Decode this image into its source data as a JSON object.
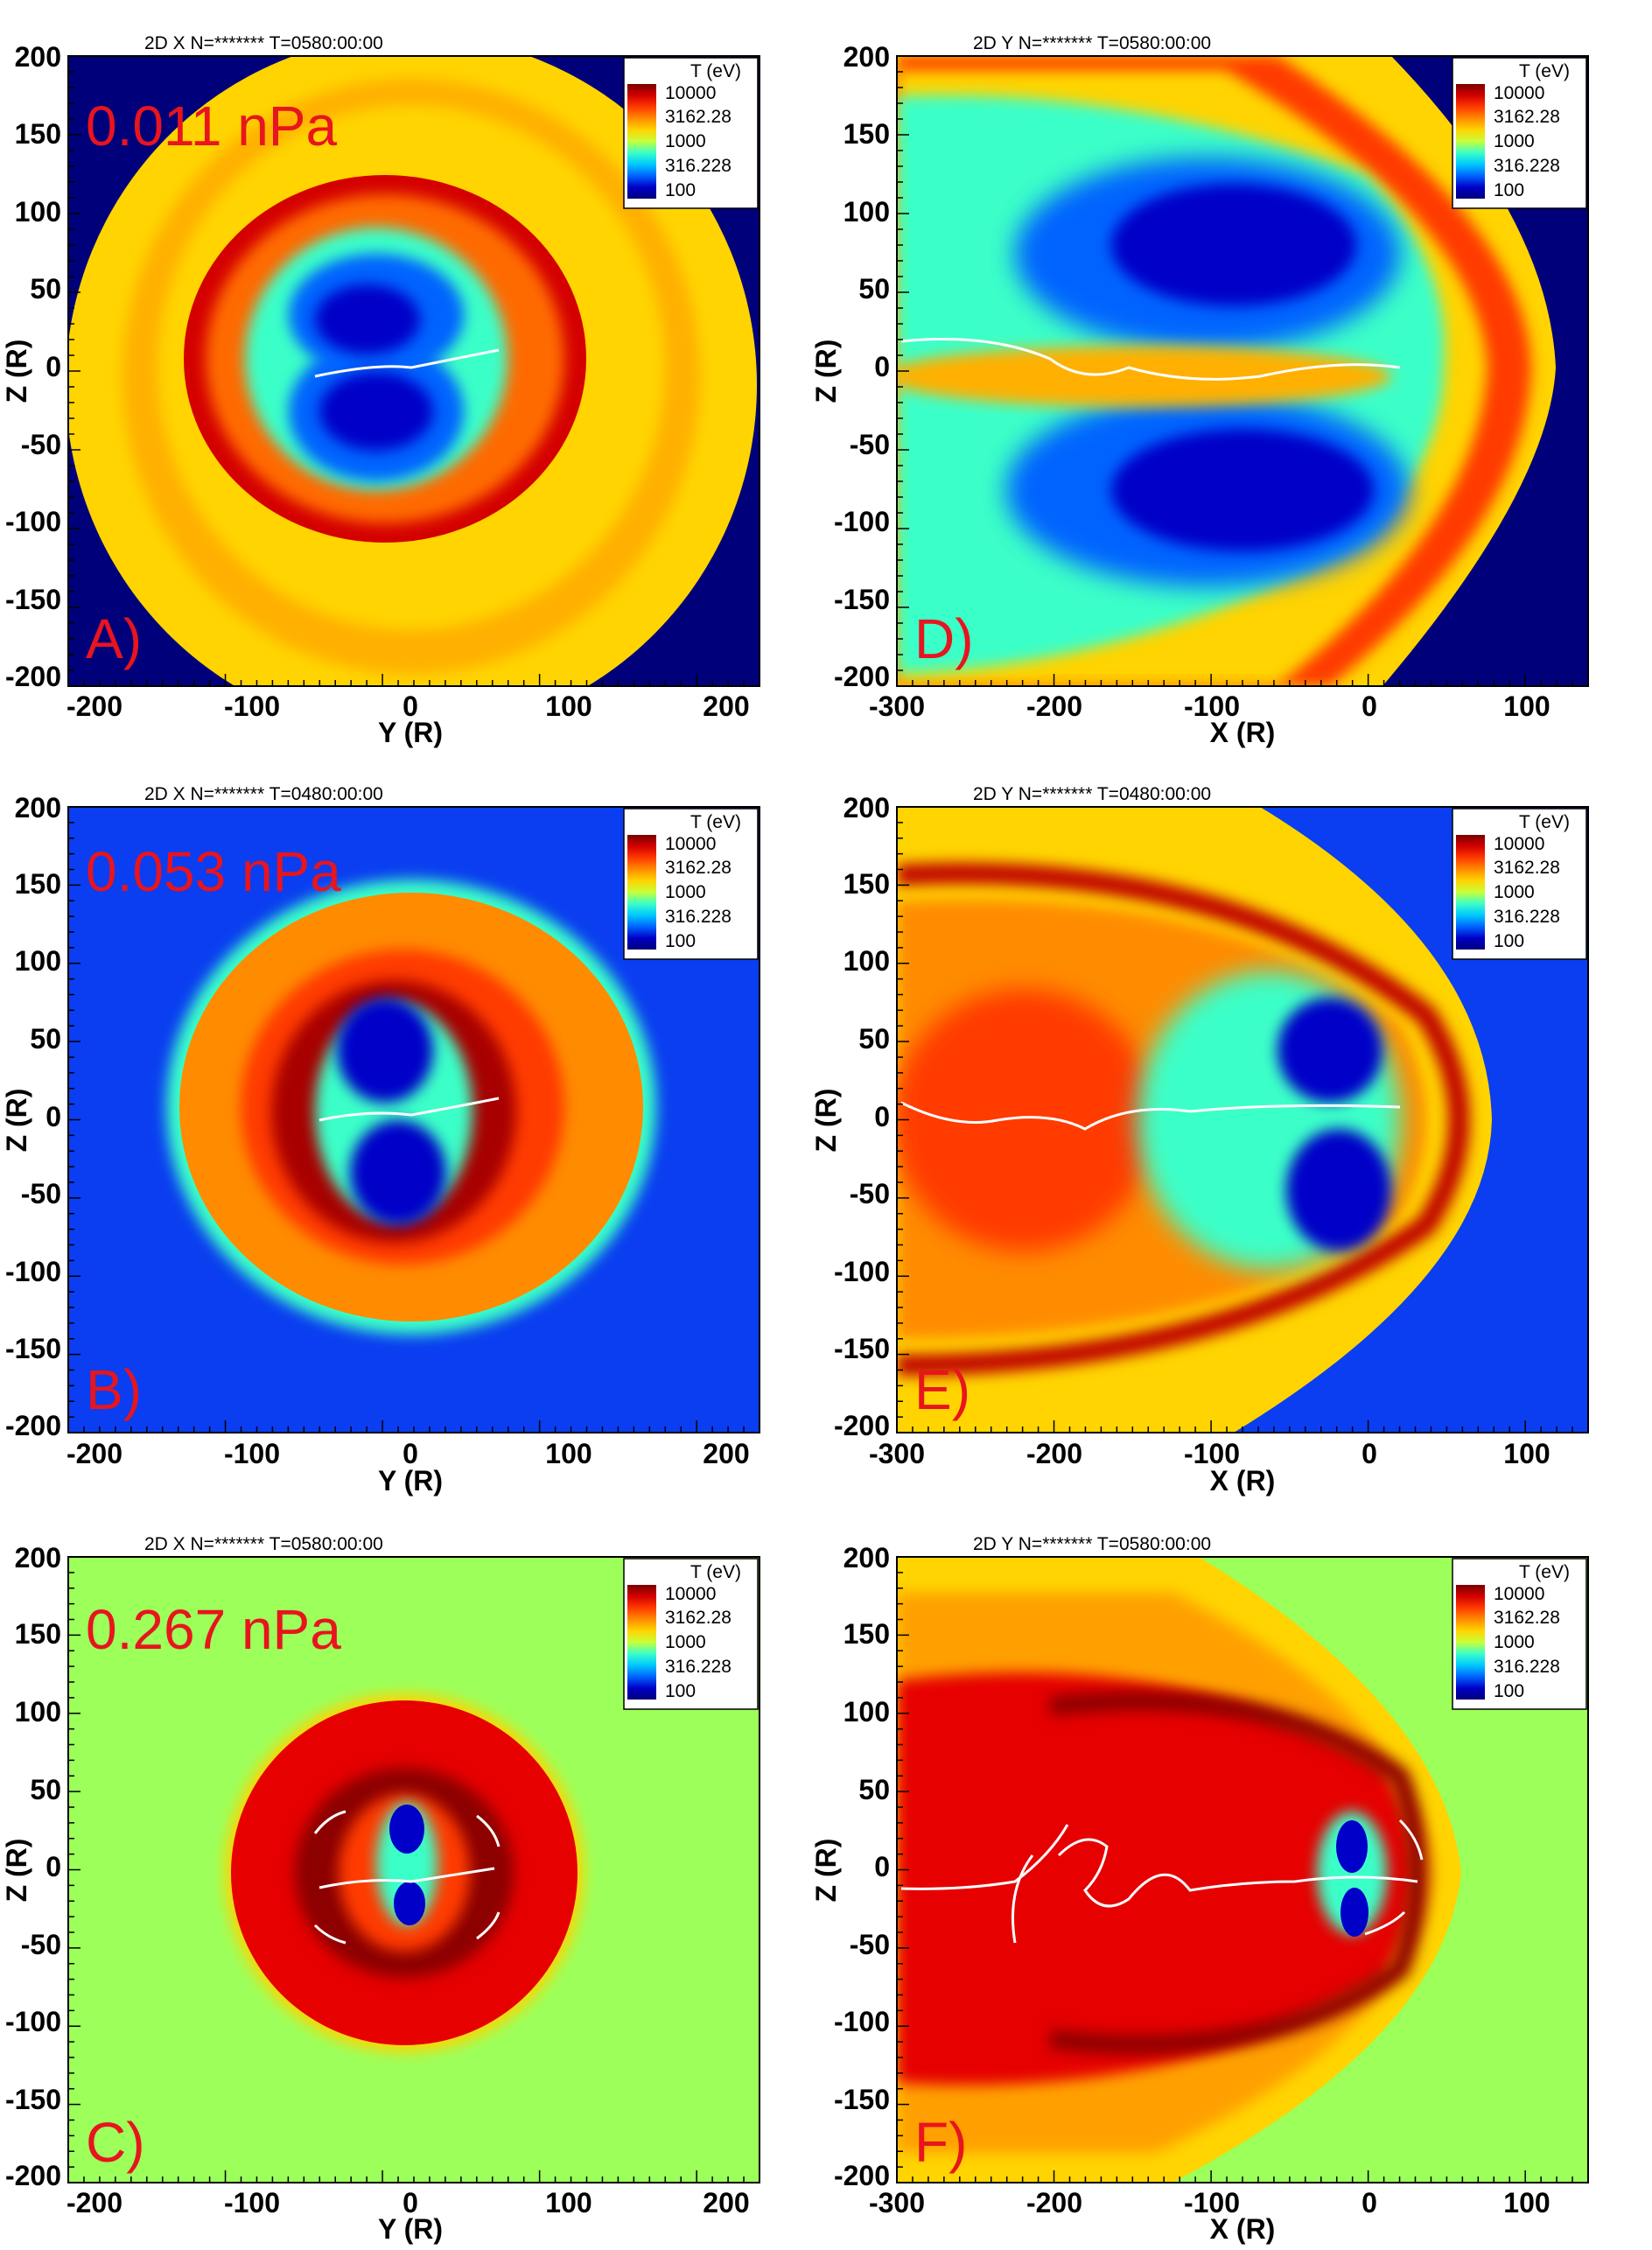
{
  "colorbar": {
    "title": "T (eV)",
    "tick_labels": [
      "10000",
      "3162.28",
      "1000",
      "316.228",
      "100"
    ],
    "stops": [
      "#7a0000",
      "#d40000",
      "#ff3a00",
      "#ff8c00",
      "#ffd400",
      "#c8ff3a",
      "#3affc8",
      "#00c8ff",
      "#0064ff",
      "#0000c8",
      "#00007a"
    ]
  },
  "panels": [
    {
      "id": "A",
      "header": "2D X N=******* T=0580:00:00",
      "letter": "A)",
      "pressure": "0.011 nPa",
      "xlabel": "Y (R)",
      "ylabel": "Z (R)",
      "xticks": [
        "-200",
        "-100",
        "0",
        "100",
        "200"
      ],
      "yticks": [
        "200",
        "150",
        "100",
        "50",
        "0",
        "-50",
        "-100",
        "-150",
        "-200"
      ],
      "background": "#00007a"
    },
    {
      "id": "D",
      "header": "2D Y N=******* T=0580:00:00",
      "letter": "D)",
      "pressure": "",
      "xlabel": "X (R)",
      "ylabel": "Z (R)",
      "xticks": [
        "-300",
        "-200",
        "-100",
        "0",
        "100"
      ],
      "yticks": [
        "200",
        "150",
        "100",
        "50",
        "0",
        "-50",
        "-100",
        "-150",
        "-200"
      ],
      "background": "#00007a"
    },
    {
      "id": "B",
      "header": "2D X N=******* T=0480:00:00",
      "letter": "B)",
      "pressure": "0.053 nPa",
      "xlabel": "Y (R)",
      "ylabel": "Z (R)",
      "xticks": [
        "-200",
        "-100",
        "0",
        "100",
        "200"
      ],
      "yticks": [
        "200",
        "150",
        "100",
        "50",
        "0",
        "-50",
        "-100",
        "-150",
        "-200"
      ],
      "background": "#0a3ef0"
    },
    {
      "id": "E",
      "header": "2D Y N=******* T=0480:00:00",
      "letter": "E)",
      "pressure": "",
      "xlabel": "X (R)",
      "ylabel": "Z (R)",
      "xticks": [
        "-300",
        "-200",
        "-100",
        "0",
        "100"
      ],
      "yticks": [
        "200",
        "150",
        "100",
        "50",
        "0",
        "-50",
        "-100",
        "-150",
        "-200"
      ],
      "background": "#0a3ef0"
    },
    {
      "id": "C",
      "header": "2D X N=******* T=0580:00:00",
      "letter": "C)",
      "pressure": "0.267 nPa",
      "xlabel": "Y (R)",
      "ylabel": "Z (R)",
      "xticks": [
        "-200",
        "-100",
        "0",
        "100",
        "200"
      ],
      "yticks": [
        "200",
        "150",
        "100",
        "50",
        "0",
        "-50",
        "-100",
        "-150",
        "-200"
      ],
      "background": "#9cff5a"
    },
    {
      "id": "F",
      "header": "2D Y N=******* T=0580:00:00",
      "letter": "F)",
      "pressure": "",
      "xlabel": "X (R)",
      "ylabel": "Z (R)",
      "xticks": [
        "-300",
        "-200",
        "-100",
        "0",
        "100"
      ],
      "yticks": [
        "200",
        "150",
        "100",
        "50",
        "0",
        "-50",
        "-100",
        "-150",
        "-200"
      ],
      "background": "#9cff5a"
    }
  ],
  "chart_data": [
    {
      "type": "heatmap",
      "panel": "A",
      "quantity": "T (eV)",
      "colorscale": "log",
      "zlim": [
        100,
        10000
      ],
      "xlim": [
        -220,
        222
      ],
      "ylim": [
        -200,
        200
      ]
    },
    {
      "type": "heatmap",
      "panel": "D",
      "quantity": "T (eV)",
      "colorscale": "log",
      "zlim": [
        100,
        10000
      ],
      "xlim": [
        -300,
        140
      ],
      "ylim": [
        -200,
        200
      ]
    },
    {
      "type": "heatmap",
      "panel": "B",
      "quantity": "T (eV)",
      "colorscale": "log",
      "zlim": [
        100,
        10000
      ],
      "xlim": [
        -220,
        222
      ],
      "ylim": [
        -200,
        200
      ]
    },
    {
      "type": "heatmap",
      "panel": "E",
      "quantity": "T (eV)",
      "colorscale": "log",
      "zlim": [
        100,
        10000
      ],
      "xlim": [
        -300,
        140
      ],
      "ylim": [
        -200,
        200
      ]
    },
    {
      "type": "heatmap",
      "panel": "C",
      "quantity": "T (eV)",
      "colorscale": "log",
      "zlim": [
        100,
        10000
      ],
      "xlim": [
        -220,
        222
      ],
      "ylim": [
        -200,
        200
      ]
    },
    {
      "type": "heatmap",
      "panel": "F",
      "quantity": "T (eV)",
      "colorscale": "log",
      "zlim": [
        100,
        10000
      ],
      "xlim": [
        -300,
        140
      ],
      "ylim": [
        -200,
        200
      ]
    }
  ]
}
